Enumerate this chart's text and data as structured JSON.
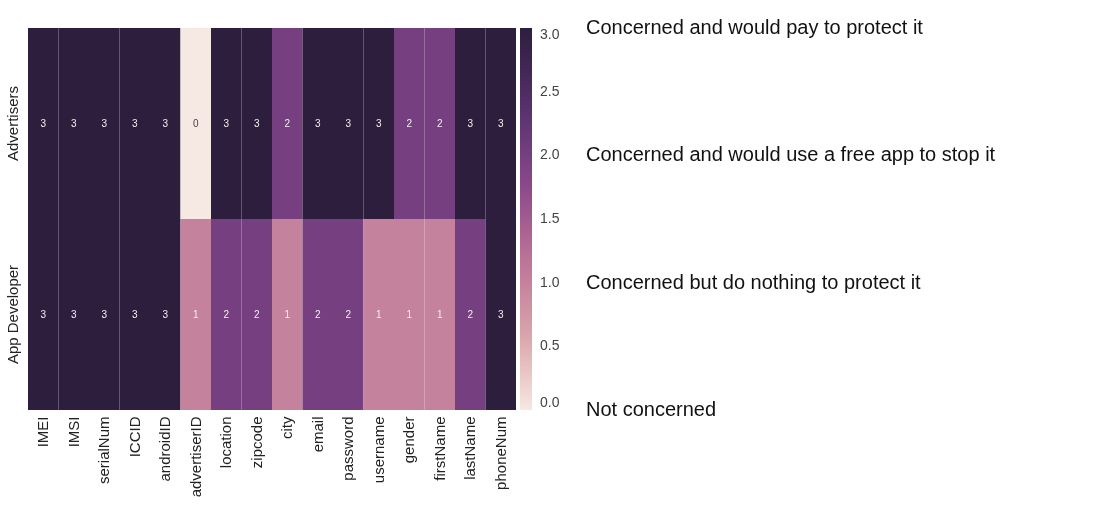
{
  "chart_data": {
    "type": "heatmap",
    "categories": [
      "IMEI",
      "IMSI",
      "serialNum",
      "ICCID",
      "androidID",
      "advertiserID",
      "location",
      "zipcode",
      "city",
      "email",
      "password",
      "username",
      "gender",
      "firstName",
      "lastName",
      "phoneNum"
    ],
    "y_categories": [
      "Advertisers",
      "App Developer"
    ],
    "cells": [
      [
        3,
        3,
        3,
        3,
        3,
        0,
        3,
        3,
        2,
        3,
        3,
        3,
        2,
        2,
        3,
        3
      ],
      [
        3,
        3,
        3,
        3,
        3,
        1,
        2,
        2,
        1,
        2,
        2,
        1,
        1,
        1,
        2,
        3
      ]
    ],
    "data_labels": true,
    "clim": [
      0,
      3
    ],
    "cticks": [
      {
        "value": 0,
        "label": "0.0"
      },
      {
        "value": 0.5,
        "label": "0.5"
      },
      {
        "value": 1,
        "label": "1.0"
      },
      {
        "value": 1.5,
        "label": "1.5"
      },
      {
        "value": 2,
        "label": "2.0"
      },
      {
        "value": 2.5,
        "label": "2.5"
      },
      {
        "value": 3,
        "label": "3.0"
      }
    ],
    "annotations": [
      "Concerned and would pay to protect it",
      "Concerned and would use a free app to stop it",
      "Concerned but do nothing to protect it",
      "Not concerned"
    ]
  }
}
